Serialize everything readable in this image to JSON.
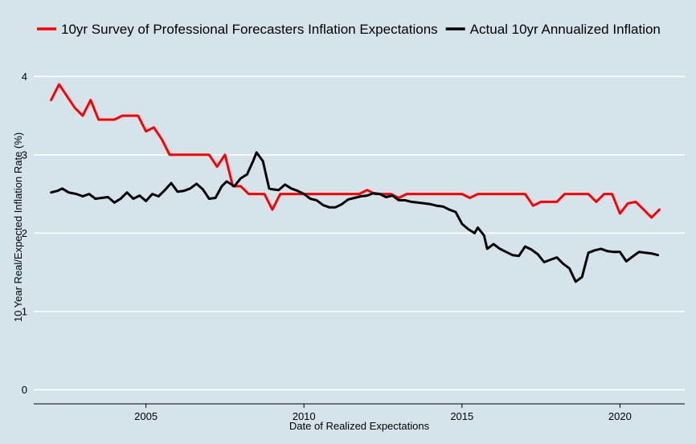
{
  "chart_data": {
    "type": "line",
    "title": "",
    "xlabel": "Date of Realized Expectations",
    "ylabel": "10 Year Real/Expected Inflation Rate (%)",
    "xlim": [
      2001.45,
      2022.05
    ],
    "ylim": [
      -0.18,
      4.28
    ],
    "x_ticks": [
      2005,
      2010,
      2015,
      2020
    ],
    "x_tick_labels": [
      "2005",
      "2010",
      "2015",
      "2020"
    ],
    "y_ticks": [
      0,
      1,
      2,
      3,
      4
    ],
    "y_tick_labels": [
      "0",
      "1",
      "2",
      "3",
      "4"
    ],
    "grid": "horizontal",
    "legend": "top",
    "series": [
      {
        "name": "10yr Survey of Professional Forecasters Inflation Expectations",
        "color": "#ff0000",
        "points": [
          [
            2002.0,
            3.7
          ],
          [
            2002.25,
            3.9
          ],
          [
            2002.5,
            3.75
          ],
          [
            2002.75,
            3.6
          ],
          [
            2003.0,
            3.5
          ],
          [
            2003.25,
            3.7
          ],
          [
            2003.5,
            3.45
          ],
          [
            2003.75,
            3.45
          ],
          [
            2004.0,
            3.45
          ],
          [
            2004.25,
            3.5
          ],
          [
            2004.5,
            3.5
          ],
          [
            2004.75,
            3.5
          ],
          [
            2005.0,
            3.3
          ],
          [
            2005.25,
            3.35
          ],
          [
            2005.5,
            3.2
          ],
          [
            2005.75,
            3.0
          ],
          [
            2006.0,
            3.0
          ],
          [
            2006.25,
            3.0
          ],
          [
            2006.5,
            3.0
          ],
          [
            2006.75,
            3.0
          ],
          [
            2007.0,
            3.0
          ],
          [
            2007.25,
            2.85
          ],
          [
            2007.5,
            3.0
          ],
          [
            2007.75,
            2.6
          ],
          [
            2008.0,
            2.6
          ],
          [
            2008.25,
            2.5
          ],
          [
            2008.5,
            2.5
          ],
          [
            2008.75,
            2.5
          ],
          [
            2009.0,
            2.3
          ],
          [
            2009.25,
            2.5
          ],
          [
            2009.5,
            2.5
          ],
          [
            2009.75,
            2.5
          ],
          [
            2010.0,
            2.5
          ],
          [
            2010.5,
            2.5
          ],
          [
            2011.0,
            2.5
          ],
          [
            2011.5,
            2.5
          ],
          [
            2011.75,
            2.5
          ],
          [
            2012.0,
            2.55
          ],
          [
            2012.25,
            2.5
          ],
          [
            2012.5,
            2.5
          ],
          [
            2012.75,
            2.5
          ],
          [
            2013.0,
            2.45
          ],
          [
            2013.25,
            2.5
          ],
          [
            2013.5,
            2.5
          ],
          [
            2014.0,
            2.5
          ],
          [
            2014.5,
            2.5
          ],
          [
            2014.75,
            2.5
          ],
          [
            2015.0,
            2.5
          ],
          [
            2015.25,
            2.45
          ],
          [
            2015.5,
            2.5
          ],
          [
            2016.0,
            2.5
          ],
          [
            2016.5,
            2.5
          ],
          [
            2016.75,
            2.5
          ],
          [
            2017.0,
            2.5
          ],
          [
            2017.25,
            2.35
          ],
          [
            2017.5,
            2.4
          ],
          [
            2017.75,
            2.4
          ],
          [
            2018.0,
            2.4
          ],
          [
            2018.25,
            2.5
          ],
          [
            2018.5,
            2.5
          ],
          [
            2018.75,
            2.5
          ],
          [
            2019.0,
            2.5
          ],
          [
            2019.25,
            2.4
          ],
          [
            2019.5,
            2.5
          ],
          [
            2019.75,
            2.5
          ],
          [
            2020.0,
            2.25
          ],
          [
            2020.25,
            2.38
          ],
          [
            2020.5,
            2.4
          ],
          [
            2020.75,
            2.3
          ],
          [
            2021.0,
            2.2
          ],
          [
            2021.25,
            2.3
          ]
        ]
      },
      {
        "name": "Actual 10yr Annualized Inflation",
        "color": "#000000",
        "points": [
          [
            2002.0,
            2.52
          ],
          [
            2002.2,
            2.54
          ],
          [
            2002.35,
            2.57
          ],
          [
            2002.55,
            2.52
          ],
          [
            2002.8,
            2.5
          ],
          [
            2003.0,
            2.47
          ],
          [
            2003.2,
            2.5
          ],
          [
            2003.4,
            2.44
          ],
          [
            2003.6,
            2.45
          ],
          [
            2003.8,
            2.46
          ],
          [
            2004.0,
            2.39
          ],
          [
            2004.2,
            2.44
          ],
          [
            2004.4,
            2.52
          ],
          [
            2004.6,
            2.44
          ],
          [
            2004.8,
            2.48
          ],
          [
            2005.0,
            2.41
          ],
          [
            2005.2,
            2.5
          ],
          [
            2005.4,
            2.47
          ],
          [
            2005.6,
            2.55
          ],
          [
            2005.8,
            2.64
          ],
          [
            2006.0,
            2.53
          ],
          [
            2006.2,
            2.54
          ],
          [
            2006.4,
            2.57
          ],
          [
            2006.6,
            2.63
          ],
          [
            2006.8,
            2.56
          ],
          [
            2007.0,
            2.44
          ],
          [
            2007.2,
            2.45
          ],
          [
            2007.4,
            2.6
          ],
          [
            2007.55,
            2.66
          ],
          [
            2007.8,
            2.6
          ],
          [
            2008.0,
            2.7
          ],
          [
            2008.2,
            2.75
          ],
          [
            2008.4,
            2.93
          ],
          [
            2008.5,
            3.03
          ],
          [
            2008.7,
            2.92
          ],
          [
            2008.9,
            2.57
          ],
          [
            2009.0,
            2.56
          ],
          [
            2009.2,
            2.55
          ],
          [
            2009.4,
            2.62
          ],
          [
            2009.6,
            2.57
          ],
          [
            2009.8,
            2.54
          ],
          [
            2010.0,
            2.5
          ],
          [
            2010.2,
            2.44
          ],
          [
            2010.4,
            2.42
          ],
          [
            2010.6,
            2.36
          ],
          [
            2010.8,
            2.33
          ],
          [
            2011.0,
            2.33
          ],
          [
            2011.2,
            2.37
          ],
          [
            2011.4,
            2.43
          ],
          [
            2011.6,
            2.45
          ],
          [
            2011.8,
            2.47
          ],
          [
            2012.0,
            2.48
          ],
          [
            2012.2,
            2.51
          ],
          [
            2012.4,
            2.5
          ],
          [
            2012.6,
            2.46
          ],
          [
            2012.8,
            2.48
          ],
          [
            2013.0,
            2.42
          ],
          [
            2013.2,
            2.42
          ],
          [
            2013.4,
            2.4
          ],
          [
            2013.6,
            2.39
          ],
          [
            2013.8,
            2.38
          ],
          [
            2014.0,
            2.37
          ],
          [
            2014.2,
            2.35
          ],
          [
            2014.4,
            2.34
          ],
          [
            2014.6,
            2.3
          ],
          [
            2014.8,
            2.27
          ],
          [
            2015.0,
            2.12
          ],
          [
            2015.2,
            2.05
          ],
          [
            2015.4,
            2.0
          ],
          [
            2015.5,
            2.07
          ],
          [
            2015.7,
            1.97
          ],
          [
            2015.8,
            1.8
          ],
          [
            2016.0,
            1.86
          ],
          [
            2016.2,
            1.8
          ],
          [
            2016.4,
            1.76
          ],
          [
            2016.6,
            1.72
          ],
          [
            2016.8,
            1.71
          ],
          [
            2017.0,
            1.83
          ],
          [
            2017.2,
            1.79
          ],
          [
            2017.4,
            1.73
          ],
          [
            2017.6,
            1.63
          ],
          [
            2017.8,
            1.66
          ],
          [
            2018.0,
            1.69
          ],
          [
            2018.2,
            1.61
          ],
          [
            2018.4,
            1.55
          ],
          [
            2018.6,
            1.38
          ],
          [
            2018.8,
            1.44
          ],
          [
            2019.0,
            1.75
          ],
          [
            2019.2,
            1.78
          ],
          [
            2019.4,
            1.8
          ],
          [
            2019.6,
            1.77
          ],
          [
            2019.8,
            1.76
          ],
          [
            2020.0,
            1.76
          ],
          [
            2020.2,
            1.64
          ],
          [
            2020.4,
            1.7
          ],
          [
            2020.6,
            1.76
          ],
          [
            2020.8,
            1.75
          ],
          [
            2021.0,
            1.74
          ],
          [
            2021.2,
            1.72
          ]
        ]
      }
    ]
  }
}
